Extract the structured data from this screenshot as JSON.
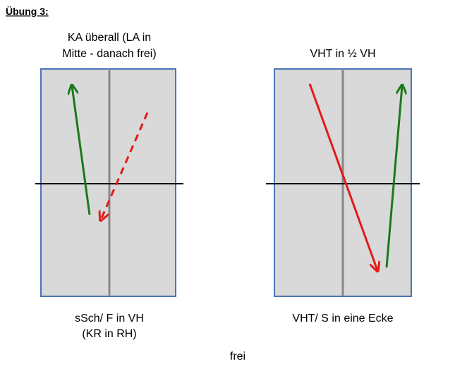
{
  "header": {
    "title": "Übung 3:"
  },
  "diagrams": [
    {
      "caption_top": [
        "KA überall (LA in",
        "Mitte - danach frei)"
      ],
      "caption_bottom": [
        "sSch/ F in VH",
        "(KR in RH)"
      ]
    },
    {
      "caption_top": [
        "VHT in ½ VH"
      ],
      "caption_bottom": [
        "VHT/ S in eine Ecke"
      ]
    }
  ],
  "footer": "frei"
}
